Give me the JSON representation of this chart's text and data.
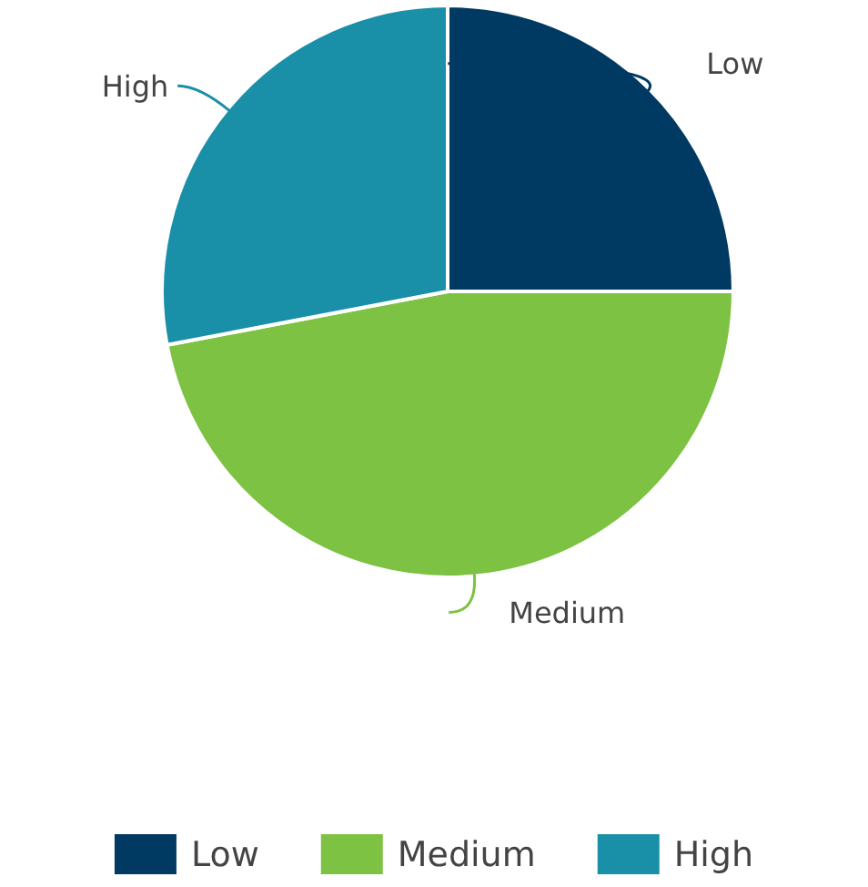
{
  "chart_data": {
    "type": "pie",
    "categories": [
      "Low",
      "Medium",
      "High"
    ],
    "values": [
      25,
      47,
      28
    ],
    "colors": [
      "#003a63",
      "#7dc242",
      "#1a8fa8"
    ],
    "legend": "bottom"
  }
}
